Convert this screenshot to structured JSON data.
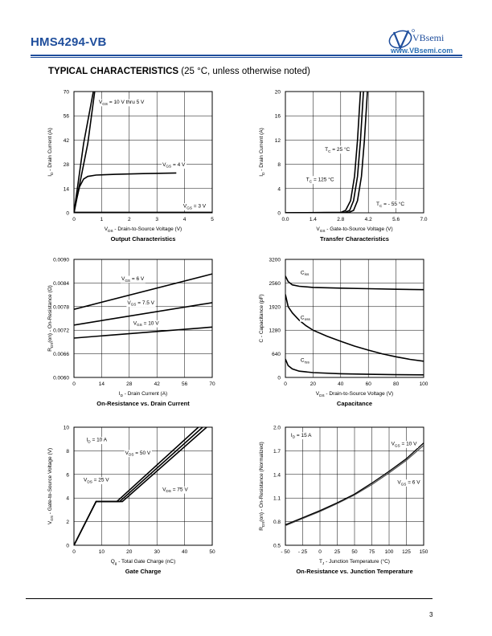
{
  "header": {
    "part_number": "HMS4294-VB",
    "brand": "VBsemi",
    "url": "www.VBsemi.com"
  },
  "section": {
    "title": "TYPICAL CHARACTERISTICS",
    "subtitle": "(25 °C, unless otherwise noted)"
  },
  "page_number": "3",
  "chart_data": [
    {
      "id": "c0",
      "type": "line",
      "title": "Output Characteristics",
      "xlabel": "VDS - Drain-to-Source Voltage (V)",
      "ylabel": "ID - Drain Current (A)",
      "xlim": [
        0,
        5
      ],
      "ylim": [
        0,
        70
      ],
      "xticks": [
        "0",
        "1",
        "2",
        "3",
        "4",
        "5"
      ],
      "yticks": [
        "0",
        "14",
        "28",
        "42",
        "56",
        "70"
      ],
      "grid": true,
      "series": [
        {
          "name": "VGS = 10 V thru 5 V",
          "x": [
            0,
            0.35,
            0.7
          ],
          "y": [
            0,
            40,
            70
          ]
        },
        {
          "name": "",
          "x": [
            0,
            0.5,
            0.75
          ],
          "y": [
            0,
            40,
            70
          ]
        },
        {
          "name": "VGS = 4 V",
          "x": [
            0,
            0.1,
            0.2,
            0.35,
            0.5,
            0.8,
            1.5,
            2.5,
            3.7
          ],
          "y": [
            0,
            8,
            15,
            19.5,
            21,
            21.8,
            22.2,
            22.6,
            23
          ]
        },
        {
          "name": "VGS = 3 V",
          "x": [
            0,
            5
          ],
          "y": [
            0.3,
            0.3
          ]
        }
      ],
      "annotations": [
        {
          "text": "VGS = 10 V thru 5 V",
          "x": 0.9,
          "y": 63
        },
        {
          "text": "VGS = 4 V",
          "x": 3.2,
          "y": 27
        },
        {
          "text": "VGS = 3 V",
          "x": 3.95,
          "y": 3
        }
      ]
    },
    {
      "id": "c1",
      "type": "line",
      "title": "Transfer Characteristics",
      "xlabel": "VGS - Gate-to-Source Voltage (V)",
      "ylabel": "ID - Drain Current (A)",
      "xlim": [
        0,
        7
      ],
      "ylim": [
        0,
        20
      ],
      "xticks": [
        "0.0",
        "1.4",
        "2.8",
        "4.2",
        "5.6",
        "7.0"
      ],
      "yticks": [
        "0",
        "4",
        "8",
        "12",
        "16",
        "20"
      ],
      "grid": true,
      "series": [
        {
          "name": "TC = 125 °C",
          "x": [
            0,
            2.8,
            3.05,
            3.3,
            3.5,
            3.65,
            3.8
          ],
          "y": [
            0,
            0.05,
            0.4,
            2,
            6,
            12,
            20
          ]
        },
        {
          "name": "TC = 25 °C",
          "x": [
            0,
            3.0,
            3.25,
            3.45,
            3.65,
            3.8,
            3.95
          ],
          "y": [
            0,
            0.05,
            0.4,
            2,
            6,
            12,
            20
          ]
        },
        {
          "name": "TC = - 55 °C",
          "x": [
            0,
            3.2,
            3.45,
            3.65,
            3.85,
            4.0,
            4.15
          ],
          "y": [
            0,
            0.05,
            0.4,
            2,
            6,
            12,
            20
          ]
        }
      ],
      "annotations": [
        {
          "text": "TC = 25 °C",
          "x": 2.0,
          "y": 10.2
        },
        {
          "text": "TC = 125 °C",
          "x": 1.05,
          "y": 5.2
        },
        {
          "text": "TC = - 55 °C",
          "x": 4.6,
          "y": 1.2
        }
      ]
    },
    {
      "id": "c2",
      "type": "line",
      "title": "On-Resistance vs. Drain Current",
      "xlabel": "ID - Drain Current (A)",
      "ylabel": "RDS(on) - On-Resistance (Ω)",
      "xlim": [
        0,
        70
      ],
      "ylim": [
        0.006,
        0.009
      ],
      "xticks": [
        "0",
        "14",
        "28",
        "42",
        "56",
        "70"
      ],
      "yticks": [
        "0.0060",
        "0.0066",
        "0.0072",
        "0.0078",
        "0.0084",
        "0.0090"
      ],
      "grid": true,
      "series": [
        {
          "name": "VGS = 6 V",
          "x": [
            0,
            70
          ],
          "y": [
            0.00773,
            0.00863
          ]
        },
        {
          "name": "VGS = 7.5 V",
          "x": [
            0,
            70
          ],
          "y": [
            0.00733,
            0.0079
          ]
        },
        {
          "name": "VGS = 10 V",
          "x": [
            0,
            70
          ],
          "y": [
            0.007,
            0.00728
          ]
        }
      ],
      "annotations": [
        {
          "text": "VGS = 6 V",
          "x": 24,
          "y": 0.00847
        },
        {
          "text": "VGS = 7.5 V",
          "x": 27,
          "y": 0.00786
        },
        {
          "text": "VGS = 10 V",
          "x": 30,
          "y": 0.00734
        }
      ]
    },
    {
      "id": "c3",
      "type": "line",
      "title": "Capacitance",
      "xlabel": "VDS - Drain-to-Source Voltage (V)",
      "ylabel": "C - Capacitance (pF)",
      "xlim": [
        0,
        100
      ],
      "ylim": [
        0,
        3200
      ],
      "xticks": [
        "0",
        "20",
        "40",
        "60",
        "80",
        "100"
      ],
      "yticks": [
        "0",
        "640",
        "1280",
        "1920",
        "2560",
        "3200"
      ],
      "grid": true,
      "series": [
        {
          "name": "Ciss",
          "x": [
            0,
            2,
            5,
            10,
            20,
            40,
            60,
            80,
            100
          ],
          "y": [
            2750,
            2600,
            2510,
            2470,
            2440,
            2420,
            2405,
            2390,
            2380
          ]
        },
        {
          "name": "Coss",
          "x": [
            0,
            2,
            5,
            10,
            15,
            20,
            30,
            40,
            50,
            60,
            70,
            80,
            90,
            100
          ],
          "y": [
            2250,
            1920,
            1750,
            1550,
            1400,
            1280,
            1120,
            980,
            850,
            740,
            640,
            560,
            490,
            440
          ]
        },
        {
          "name": "Crss",
          "x": [
            0,
            2,
            5,
            10,
            20,
            40,
            60,
            80,
            100
          ],
          "y": [
            500,
            320,
            230,
            170,
            130,
            100,
            85,
            75,
            70
          ]
        }
      ],
      "annotations": [
        {
          "text": "Ciss",
          "x": 11,
          "y": 2800
        },
        {
          "text": "Coss",
          "x": 11,
          "y": 1580
        },
        {
          "text": "Crss",
          "x": 11,
          "y": 420
        }
      ]
    },
    {
      "id": "c4",
      "type": "line",
      "title": "Gate Charge",
      "xlabel": "Qg - Total Gate Charge (nC)",
      "ylabel": "VGS - Gate-to-Source Voltage (V)",
      "xlim": [
        0,
        50
      ],
      "ylim": [
        0,
        10
      ],
      "xticks": [
        "0",
        "10",
        "20",
        "30",
        "40",
        "50"
      ],
      "yticks": [
        "0",
        "2",
        "4",
        "6",
        "8",
        "10"
      ],
      "grid": true,
      "series": [
        {
          "name": "VDS = 25 V",
          "x": [
            0,
            8,
            15.5,
            45
          ],
          "y": [
            0,
            3.7,
            3.7,
            10
          ]
        },
        {
          "name": "VDS = 50 V",
          "x": [
            0,
            8,
            16.5,
            46.5
          ],
          "y": [
            0,
            3.7,
            3.7,
            10
          ]
        },
        {
          "name": "VDS = 75 V",
          "x": [
            0,
            8,
            17.5,
            48
          ],
          "y": [
            0,
            3.7,
            3.7,
            10
          ]
        }
      ],
      "annotations": [
        {
          "text": "ID = 10 A",
          "x": 4.5,
          "y": 8.8
        },
        {
          "text": "VDS = 50 V",
          "x": 18.5,
          "y": 7.7
        },
        {
          "text": "VDS = 25 V",
          "x": 3.5,
          "y": 5.4
        },
        {
          "text": "VDS = 75 V",
          "x": 32,
          "y": 4.6
        }
      ]
    },
    {
      "id": "c5",
      "type": "line",
      "title": "On-Resistance vs. Junction Temperature",
      "xlabel": "TJ - Junction Temperature (°C)",
      "ylabel": "RDS(on) - On-Resistance (Normalized)",
      "xlim": [
        -50,
        150
      ],
      "ylim": [
        0.5,
        2.0
      ],
      "xticks": [
        "- 50",
        "- 25",
        "0",
        "25",
        "50",
        "75",
        "100",
        "125",
        "150"
      ],
      "yticks": [
        "0.5",
        "0.8",
        "1.1",
        "1.4",
        "1.7",
        "2.0"
      ],
      "grid": true,
      "series": [
        {
          "name": "VGS = 10 V",
          "x": [
            -50,
            -25,
            0,
            25,
            50,
            75,
            100,
            125,
            150
          ],
          "y": [
            0.75,
            0.84,
            0.93,
            1.03,
            1.14,
            1.27,
            1.42,
            1.58,
            1.77
          ]
        },
        {
          "name": "VGS = 6 V",
          "x": [
            -50,
            -25,
            0,
            25,
            50,
            75,
            100,
            125,
            150
          ],
          "y": [
            0.76,
            0.85,
            0.94,
            1.04,
            1.15,
            1.29,
            1.44,
            1.6,
            1.8
          ]
        }
      ],
      "annotations": [
        {
          "text": "ID = 15 A",
          "x": -42,
          "y": 1.88
        },
        {
          "text": "VGS = 10 V",
          "x": 103,
          "y": 1.77
        },
        {
          "text": "VGS = 6 V",
          "x": 112,
          "y": 1.28
        }
      ]
    }
  ]
}
